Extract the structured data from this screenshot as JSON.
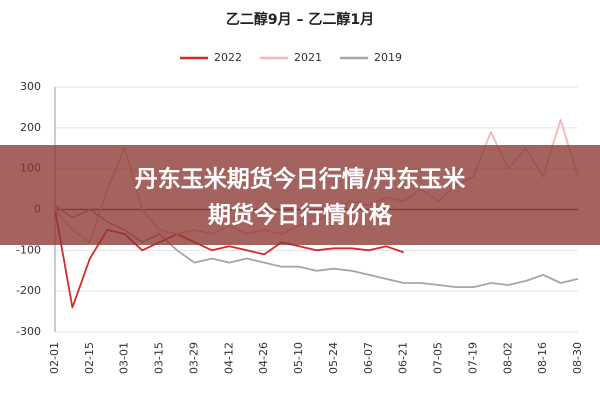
{
  "chart_data": {
    "type": "line",
    "title": "乙二醇9月 – 乙二醇1月",
    "categories": [
      "02-01",
      null,
      "02-15",
      null,
      "03-01",
      null,
      "03-15",
      null,
      "03-29",
      null,
      "04-12",
      null,
      "04-26",
      null,
      "05-10",
      null,
      "05-24",
      null,
      "06-07",
      null,
      "06-21",
      null,
      "07-05",
      null,
      "07-19",
      null,
      "08-02",
      null,
      "08-16",
      null,
      "08-30"
    ],
    "series": [
      {
        "name": "2022",
        "color": "#d42a2a",
        "values": [
          0,
          -240,
          -120,
          -50,
          -60,
          -100,
          -80,
          -60,
          -80,
          -100,
          -90,
          -100,
          -110,
          -80,
          -90,
          -100,
          -95,
          -95,
          -100,
          -90,
          -105,
          null,
          null,
          null,
          null,
          null,
          null,
          null,
          null,
          null,
          null
        ]
      },
      {
        "name": "2021",
        "color": "#f2b8b8",
        "values": [
          0,
          -50,
          -80,
          50,
          150,
          0,
          -50,
          -60,
          -50,
          -60,
          -40,
          -60,
          -50,
          -60,
          -40,
          -30,
          0,
          20,
          10,
          30,
          20,
          50,
          20,
          60,
          80,
          190,
          100,
          150,
          80,
          220,
          80
        ]
      },
      {
        "name": "2019",
        "color": "#a6a6a6",
        "values": [
          10,
          -20,
          0,
          -30,
          -50,
          -80,
          -60,
          -100,
          -130,
          -120,
          -130,
          -120,
          -130,
          -140,
          -140,
          -150,
          -145,
          -150,
          -160,
          -170,
          -180,
          -180,
          -185,
          -190,
          -190,
          -180,
          -185,
          -175,
          -160,
          -180,
          -170
        ]
      }
    ],
    "ylim": [
      -300,
      300
    ],
    "yticks": [
      -300,
      -200,
      -100,
      0,
      100,
      200,
      300
    ],
    "grid": true,
    "legend": "top"
  },
  "banner": {
    "lines": [
      "丹东玉米期货今日行情/丹东玉米",
      "期货今日行情价格"
    ]
  }
}
